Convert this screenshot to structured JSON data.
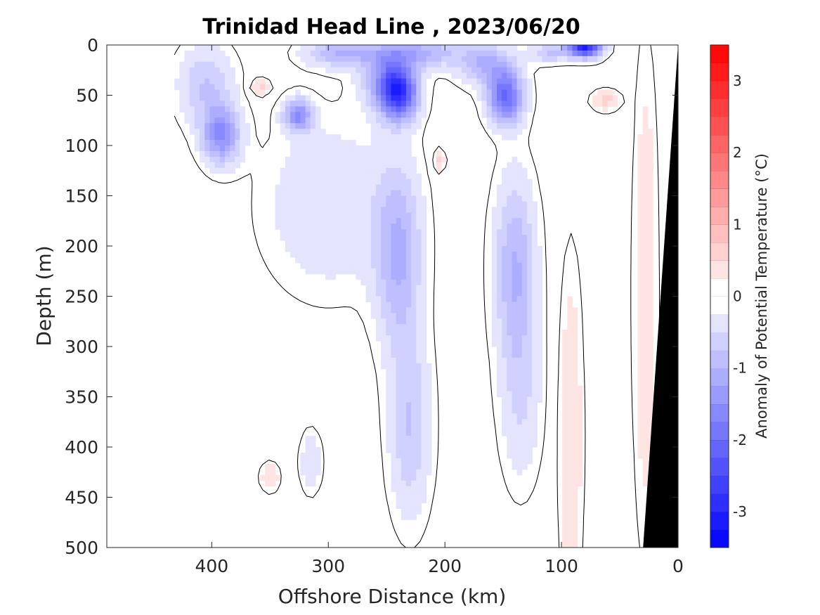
{
  "chart_data": {
    "type": "heatmap",
    "title": "Trinidad Head Line , 2023/06/20",
    "xlabel": "Offshore Distance (km)",
    "ylabel": "Depth (m)",
    "xlim": [
      490,
      0
    ],
    "ylim": [
      0,
      500
    ],
    "x_reversed": true,
    "y_reversed": true,
    "x_ticks": [
      "400",
      "300",
      "200",
      "100",
      "0"
    ],
    "x_tick_values": [
      400,
      300,
      200,
      100,
      0
    ],
    "y_ticks": [
      "0",
      "50",
      "100",
      "150",
      "200",
      "250",
      "300",
      "350",
      "400",
      "450",
      "500"
    ],
    "y_tick_values": [
      0,
      50,
      100,
      150,
      200,
      250,
      300,
      350,
      400,
      450,
      500
    ],
    "colorbar": {
      "label": "Anomaly of Potential Temperature (°C)",
      "range": [
        -3.5,
        3.5
      ],
      "step": 0.25,
      "zero_band": [
        -0.25,
        0.25
      ],
      "ticks": [
        "-3",
        "-2",
        "-1",
        "0",
        "1",
        "2",
        "3"
      ],
      "tick_values": [
        -3,
        -2,
        -1,
        0,
        1,
        2,
        3
      ],
      "negative_color": "#0000ff",
      "positive_color": "#ff0000",
      "neutral_color": "#ffffff"
    },
    "data_extent_km": 432,
    "bottom_mask_color": "#000000",
    "zero_contour_color": "#000000",
    "anomaly_features": [
      {
        "x": 80,
        "y": 2,
        "value": -3.0,
        "sx": 14,
        "sy": 10
      },
      {
        "x": 110,
        "y": 8,
        "value": -0.75,
        "sx": 18,
        "sy": 10
      },
      {
        "x": 240,
        "y": 48,
        "value": -2.5,
        "sx": 16,
        "sy": 26
      },
      {
        "x": 250,
        "y": 30,
        "value": -1.0,
        "sx": 22,
        "sy": 30
      },
      {
        "x": 220,
        "y": 8,
        "value": -1.0,
        "sx": 35,
        "sy": 14
      },
      {
        "x": 148,
        "y": 52,
        "value": -2.0,
        "sx": 15,
        "sy": 26
      },
      {
        "x": 165,
        "y": 20,
        "value": -1.0,
        "sx": 24,
        "sy": 20
      },
      {
        "x": 290,
        "y": 8,
        "value": -1.0,
        "sx": 30,
        "sy": 14
      },
      {
        "x": 326,
        "y": 70,
        "value": -1.5,
        "sx": 12,
        "sy": 16
      },
      {
        "x": 392,
        "y": 90,
        "value": -1.5,
        "sx": 16,
        "sy": 28
      },
      {
        "x": 405,
        "y": 40,
        "value": -0.75,
        "sx": 24,
        "sy": 40
      },
      {
        "x": 240,
        "y": 210,
        "value": -1.0,
        "sx": 20,
        "sy": 90
      },
      {
        "x": 140,
        "y": 220,
        "value": -1.0,
        "sx": 18,
        "sy": 90
      },
      {
        "x": 230,
        "y": 380,
        "value": -0.75,
        "sx": 18,
        "sy": 90
      },
      {
        "x": 300,
        "y": 160,
        "value": -0.5,
        "sx": 55,
        "sy": 85
      },
      {
        "x": 135,
        "y": 350,
        "value": -0.5,
        "sx": 18,
        "sy": 90
      },
      {
        "x": 315,
        "y": 415,
        "value": -0.5,
        "sx": 9,
        "sy": 30
      },
      {
        "x": 358,
        "y": 42,
        "value": 0.6,
        "sx": 9,
        "sy": 8
      },
      {
        "x": 205,
        "y": 115,
        "value": 0.6,
        "sx": 5,
        "sy": 12
      },
      {
        "x": 62,
        "y": 55,
        "value": 0.6,
        "sx": 12,
        "sy": 10
      },
      {
        "x": 92,
        "y": 390,
        "value": 0.5,
        "sx": 10,
        "sy": 170
      },
      {
        "x": 28,
        "y": 250,
        "value": 0.5,
        "sx": 10,
        "sy": 230
      },
      {
        "x": 350,
        "y": 430,
        "value": 0.5,
        "sx": 8,
        "sy": 14
      }
    ]
  }
}
